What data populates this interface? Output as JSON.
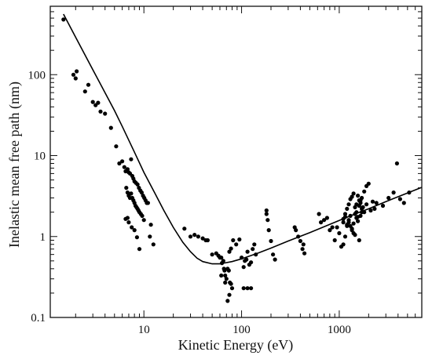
{
  "chart_data": {
    "type": "scatter",
    "xlabel": "Kinetic Energy   (eV)",
    "ylabel": "Inelastic mean free path   (nm)",
    "xscale": "log",
    "yscale": "log",
    "xlim": [
      1.1,
      7000
    ],
    "ylim": [
      0.1,
      700
    ],
    "x_ticks": [
      {
        "value": 10,
        "label": "10"
      },
      {
        "value": 100,
        "label": "100"
      },
      {
        "value": 1000,
        "label": "1000"
      }
    ],
    "y_ticks": [
      {
        "value": 0.1,
        "label": "0.1"
      },
      {
        "value": 1,
        "label": "1"
      },
      {
        "value": 10,
        "label": "10"
      },
      {
        "value": 100,
        "label": "100"
      }
    ],
    "grid": false,
    "legend": "none",
    "series": [
      {
        "kind": "points",
        "points": [
          [
            1.5,
            480
          ],
          [
            1.9,
            100
          ],
          [
            2.0,
            90
          ],
          [
            2.05,
            110
          ],
          [
            2.5,
            62
          ],
          [
            2.7,
            75
          ],
          [
            3.0,
            46
          ],
          [
            3.2,
            42
          ],
          [
            3.4,
            45
          ],
          [
            3.6,
            35
          ],
          [
            4.0,
            33
          ],
          [
            4.6,
            22
          ],
          [
            5.2,
            13
          ],
          [
            5.6,
            8
          ],
          [
            6.0,
            8.5
          ],
          [
            6.3,
            7.2
          ],
          [
            6.5,
            6.4
          ],
          [
            6.6,
            4.0
          ],
          [
            6.8,
            6.8
          ],
          [
            7.0,
            6.2
          ],
          [
            7.2,
            6.0
          ],
          [
            7.4,
            9.0
          ],
          [
            7.6,
            5.6
          ],
          [
            7.8,
            5.2
          ],
          [
            8.0,
            4.8
          ],
          [
            8.3,
            4.6
          ],
          [
            8.6,
            4.4
          ],
          [
            8.9,
            4.0
          ],
          [
            9.2,
            3.7
          ],
          [
            9.5,
            3.5
          ],
          [
            9.8,
            3.2
          ],
          [
            10.1,
            3.0
          ],
          [
            10.4,
            2.8
          ],
          [
            10.7,
            2.6
          ],
          [
            11.0,
            2.6
          ],
          [
            6.8,
            3.5
          ],
          [
            7.0,
            3.2
          ],
          [
            7.2,
            3.0
          ],
          [
            7.4,
            3.4
          ],
          [
            7.6,
            3.0
          ],
          [
            7.8,
            2.8
          ],
          [
            8.0,
            2.6
          ],
          [
            8.2,
            2.4
          ],
          [
            8.4,
            2.3
          ],
          [
            8.6,
            2.2
          ],
          [
            8.8,
            2.1
          ],
          [
            9.0,
            2.0
          ],
          [
            9.3,
            1.9
          ],
          [
            9.6,
            1.8
          ],
          [
            10.0,
            1.6
          ],
          [
            6.5,
            1.65
          ],
          [
            6.8,
            1.7
          ],
          [
            7.0,
            1.5
          ],
          [
            7.5,
            1.3
          ],
          [
            8.0,
            1.2
          ],
          [
            8.5,
            0.98
          ],
          [
            9.0,
            0.7
          ],
          [
            11.5,
            1.0
          ],
          [
            11.8,
            1.4
          ],
          [
            12.5,
            0.8
          ],
          [
            26,
            1.25
          ],
          [
            30,
            1.0
          ],
          [
            33,
            1.05
          ],
          [
            36,
            1.0
          ],
          [
            40,
            0.95
          ],
          [
            43,
            0.9
          ],
          [
            45,
            0.9
          ],
          [
            50,
            0.6
          ],
          [
            55,
            0.62
          ],
          [
            58,
            0.58
          ],
          [
            60,
            0.55
          ],
          [
            62,
            0.55
          ],
          [
            63,
            0.47
          ],
          [
            65,
            0.5
          ],
          [
            66,
            0.4
          ],
          [
            67,
            0.38
          ],
          [
            68,
            0.33
          ],
          [
            70,
            0.3
          ],
          [
            72,
            0.4
          ],
          [
            74,
            0.38
          ],
          [
            75,
            0.65
          ],
          [
            76,
            0.27
          ],
          [
            78,
            0.26
          ],
          [
            80,
            0.23
          ],
          [
            62,
            0.33
          ],
          [
            68,
            0.27
          ],
          [
            72,
            0.16
          ],
          [
            75,
            0.19
          ],
          [
            78,
            0.71
          ],
          [
            82,
            0.9
          ],
          [
            88,
            0.8
          ],
          [
            95,
            0.92
          ],
          [
            100,
            0.55
          ],
          [
            105,
            0.42
          ],
          [
            108,
            0.5
          ],
          [
            112,
            0.52
          ],
          [
            115,
            0.65
          ],
          [
            120,
            0.45
          ],
          [
            125,
            0.48
          ],
          [
            130,
            0.7
          ],
          [
            135,
            0.8
          ],
          [
            140,
            0.6
          ],
          [
            105,
            0.23
          ],
          [
            115,
            0.23
          ],
          [
            125,
            0.23
          ],
          [
            180,
            2.1
          ],
          [
            180,
            1.9
          ],
          [
            185,
            1.6
          ],
          [
            190,
            1.2
          ],
          [
            200,
            0.88
          ],
          [
            210,
            0.6
          ],
          [
            220,
            0.52
          ],
          [
            350,
            1.3
          ],
          [
            360,
            1.2
          ],
          [
            380,
            1.0
          ],
          [
            400,
            0.88
          ],
          [
            420,
            0.7
          ],
          [
            430,
            0.8
          ],
          [
            440,
            0.62
          ],
          [
            620,
            1.9
          ],
          [
            650,
            1.5
          ],
          [
            700,
            1.6
          ],
          [
            750,
            1.7
          ],
          [
            800,
            1.2
          ],
          [
            850,
            1.3
          ],
          [
            900,
            0.9
          ],
          [
            950,
            1.3
          ],
          [
            1000,
            1.1
          ],
          [
            1050,
            0.75
          ],
          [
            1100,
            0.8
          ],
          [
            1150,
            1.0
          ],
          [
            1200,
            1.35
          ],
          [
            1250,
            1.6
          ],
          [
            1300,
            1.8
          ],
          [
            1350,
            1.2
          ],
          [
            1400,
            1.45
          ],
          [
            1450,
            1.9
          ],
          [
            1500,
            2.0
          ],
          [
            1550,
            1.55
          ],
          [
            1600,
            0.9
          ],
          [
            1650,
            2.6
          ],
          [
            1700,
            2.2
          ],
          [
            1800,
            3.6
          ],
          [
            1900,
            4.2
          ],
          [
            2000,
            4.5
          ],
          [
            2200,
            2.7
          ],
          [
            2400,
            2.6
          ],
          [
            2800,
            2.4
          ],
          [
            3200,
            3.0
          ],
          [
            3600,
            3.5
          ],
          [
            3900,
            8.0
          ],
          [
            4200,
            2.9
          ],
          [
            4600,
            2.6
          ],
          [
            5200,
            3.5
          ],
          [
            1100,
            1.5
          ],
          [
            1150,
            1.9
          ],
          [
            1200,
            2.2
          ],
          [
            1250,
            2.5
          ],
          [
            1300,
            2.9
          ],
          [
            1350,
            3.1
          ],
          [
            1400,
            3.4
          ],
          [
            1450,
            2.3
          ],
          [
            1500,
            2.5
          ],
          [
            1550,
            3.2
          ],
          [
            1600,
            2.8
          ],
          [
            1650,
            1.8
          ],
          [
            1700,
            2.0
          ],
          [
            1750,
            2.3
          ],
          [
            1800,
            2.0
          ],
          [
            1900,
            2.5
          ],
          [
            2100,
            2.1
          ],
          [
            2300,
            2.2
          ],
          [
            1100,
            1.65
          ],
          [
            1150,
            1.75
          ],
          [
            1200,
            1.4
          ],
          [
            1250,
            1.5
          ],
          [
            1300,
            1.35
          ],
          [
            1350,
            1.25
          ],
          [
            1400,
            1.1
          ],
          [
            1450,
            1.05
          ],
          [
            1500,
            1.7
          ],
          [
            1550,
            1.75
          ],
          [
            1600,
            2.4
          ],
          [
            1650,
            2.8
          ],
          [
            1700,
            3.0
          ]
        ]
      },
      {
        "kind": "curve",
        "points": [
          [
            1.5,
            560
          ],
          [
            2,
            290
          ],
          [
            3,
            115
          ],
          [
            4,
            60
          ],
          [
            5,
            36
          ],
          [
            6,
            23
          ],
          [
            8,
            11
          ],
          [
            10,
            6.2
          ],
          [
            13,
            3.4
          ],
          [
            16,
            2.1
          ],
          [
            20,
            1.3
          ],
          [
            25,
            0.85
          ],
          [
            30,
            0.65
          ],
          [
            35,
            0.54
          ],
          [
            40,
            0.49
          ],
          [
            50,
            0.46
          ],
          [
            60,
            0.46
          ],
          [
            80,
            0.49
          ],
          [
            100,
            0.53
          ],
          [
            150,
            0.63
          ],
          [
            200,
            0.72
          ],
          [
            300,
            0.88
          ],
          [
            500,
            1.12
          ],
          [
            700,
            1.32
          ],
          [
            1000,
            1.58
          ],
          [
            1500,
            1.93
          ],
          [
            2000,
            2.2
          ],
          [
            3000,
            2.7
          ],
          [
            5000,
            3.45
          ],
          [
            7000,
            4.05
          ]
        ]
      }
    ]
  }
}
